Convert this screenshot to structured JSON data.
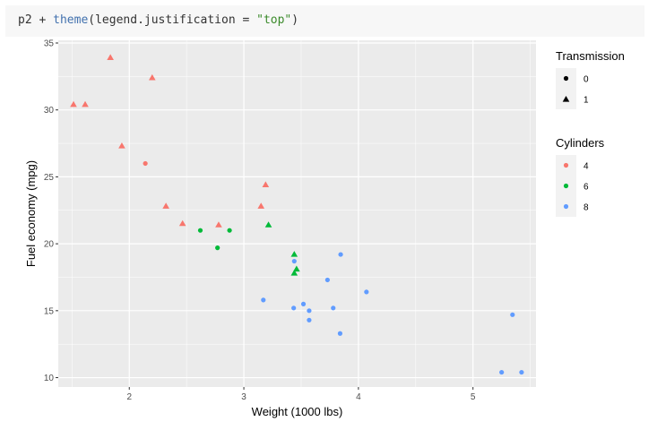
{
  "code": {
    "prefix": "p2 + ",
    "fn": "theme",
    "arg": "(legend.justification = ",
    "str": "\"top\"",
    "suffix": ")"
  },
  "colors": {
    "panel": "#ebebeb",
    "grid_major": "#ffffff",
    "cyl4": "#f8766d",
    "cyl6": "#00ba38",
    "cyl8": "#619cff"
  },
  "chart_data": {
    "type": "scatter",
    "xlabel": "Weight (1000 lbs)",
    "ylabel": "Fuel economy (mpg)",
    "xlim": [
      1.38,
      5.55
    ],
    "ylim": [
      9.3,
      35.2
    ],
    "x_ticks": [
      2,
      3,
      4,
      5
    ],
    "y_ticks": [
      10,
      15,
      20,
      25,
      30,
      35
    ],
    "grid": true,
    "legend_position": "right-top",
    "legends": [
      {
        "title": "Transmission",
        "entries": [
          {
            "label": "0",
            "shape": "circle"
          },
          {
            "label": "1",
            "shape": "triangle"
          }
        ]
      },
      {
        "title": "Cylinders",
        "entries": [
          {
            "label": "4",
            "color": "#f8766d"
          },
          {
            "label": "6",
            "color": "#00ba38"
          },
          {
            "label": "8",
            "color": "#619cff"
          }
        ]
      }
    ],
    "points": [
      {
        "wt": 1.513,
        "mpg": 30.4,
        "cyl": 4,
        "am": 1
      },
      {
        "wt": 1.615,
        "mpg": 30.4,
        "cyl": 4,
        "am": 1
      },
      {
        "wt": 1.835,
        "mpg": 33.9,
        "cyl": 4,
        "am": 1
      },
      {
        "wt": 1.935,
        "mpg": 27.3,
        "cyl": 4,
        "am": 1
      },
      {
        "wt": 2.2,
        "mpg": 32.4,
        "cyl": 4,
        "am": 1
      },
      {
        "wt": 2.14,
        "mpg": 26.0,
        "cyl": 4,
        "am": 0
      },
      {
        "wt": 2.32,
        "mpg": 22.8,
        "cyl": 4,
        "am": 1
      },
      {
        "wt": 2.465,
        "mpg": 21.5,
        "cyl": 4,
        "am": 1
      },
      {
        "wt": 2.78,
        "mpg": 21.4,
        "cyl": 4,
        "am": 1
      },
      {
        "wt": 3.15,
        "mpg": 22.8,
        "cyl": 4,
        "am": 1
      },
      {
        "wt": 3.19,
        "mpg": 24.4,
        "cyl": 4,
        "am": 1
      },
      {
        "wt": 2.62,
        "mpg": 21.0,
        "cyl": 6,
        "am": 0
      },
      {
        "wt": 2.875,
        "mpg": 21.0,
        "cyl": 6,
        "am": 0
      },
      {
        "wt": 2.77,
        "mpg": 19.7,
        "cyl": 6,
        "am": 0
      },
      {
        "wt": 3.215,
        "mpg": 21.4,
        "cyl": 6,
        "am": 1
      },
      {
        "wt": 3.44,
        "mpg": 19.2,
        "cyl": 6,
        "am": 1
      },
      {
        "wt": 3.44,
        "mpg": 17.8,
        "cyl": 6,
        "am": 1
      },
      {
        "wt": 3.46,
        "mpg": 18.1,
        "cyl": 6,
        "am": 1
      },
      {
        "wt": 3.44,
        "mpg": 18.7,
        "cyl": 8,
        "am": 0
      },
      {
        "wt": 3.17,
        "mpg": 15.8,
        "cyl": 8,
        "am": 0
      },
      {
        "wt": 3.435,
        "mpg": 15.2,
        "cyl": 8,
        "am": 0
      },
      {
        "wt": 3.52,
        "mpg": 15.5,
        "cyl": 8,
        "am": 0
      },
      {
        "wt": 3.57,
        "mpg": 15.0,
        "cyl": 8,
        "am": 0
      },
      {
        "wt": 3.57,
        "mpg": 14.3,
        "cyl": 8,
        "am": 0
      },
      {
        "wt": 3.73,
        "mpg": 17.3,
        "cyl": 8,
        "am": 0
      },
      {
        "wt": 3.78,
        "mpg": 15.2,
        "cyl": 8,
        "am": 0
      },
      {
        "wt": 3.84,
        "mpg": 13.3,
        "cyl": 8,
        "am": 0
      },
      {
        "wt": 3.845,
        "mpg": 19.2,
        "cyl": 8,
        "am": 0
      },
      {
        "wt": 4.07,
        "mpg": 16.4,
        "cyl": 8,
        "am": 0
      },
      {
        "wt": 5.25,
        "mpg": 10.4,
        "cyl": 8,
        "am": 0
      },
      {
        "wt": 5.345,
        "mpg": 14.7,
        "cyl": 8,
        "am": 0
      },
      {
        "wt": 5.424,
        "mpg": 10.4,
        "cyl": 8,
        "am": 0
      }
    ]
  }
}
